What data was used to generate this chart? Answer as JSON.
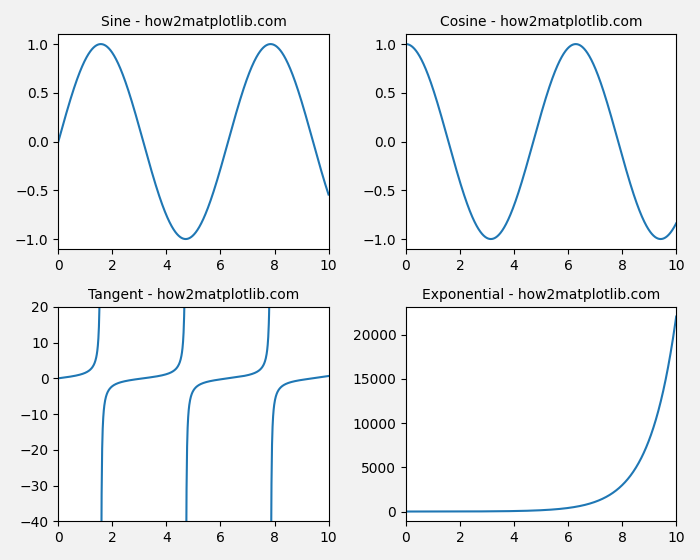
{
  "titles": [
    "Sine - how2matplotlib.com",
    "Cosine - how2matplotlib.com",
    "Tangent - how2matplotlib.com",
    "Exponential - how2matplotlib.com"
  ],
  "x_range": [
    0,
    10
  ],
  "num_points": 1000,
  "line_color": "#1f77b4",
  "line_width": 1.5,
  "tan_ylim": [
    -40,
    20
  ],
  "figure_size": [
    7.0,
    5.6
  ],
  "dpi": 100,
  "background_color": "#f2f2f2",
  "subplot_bg": "#ffffff",
  "title_fontsize": 10
}
